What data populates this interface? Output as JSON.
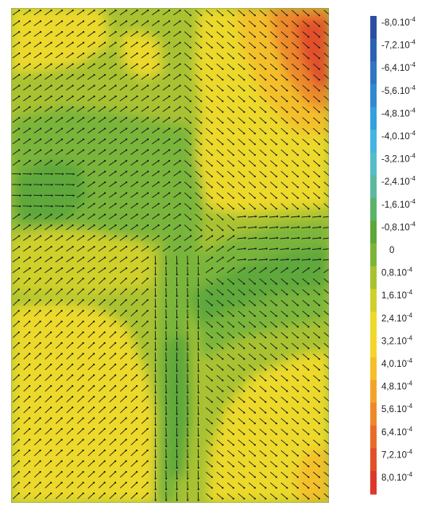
{
  "chart_data": {
    "type": "heatmap",
    "title": "",
    "xlabel": "",
    "ylabel": "",
    "overlay": "vector-field (short black arrows on a regular grid)",
    "grid": false,
    "legend_placement": "right",
    "colorbar": {
      "levels": [
        {
          "label": "-8,0.10-4",
          "value": -0.0008,
          "color": "#2b4fa0"
        },
        {
          "label": "-7,2.10-4",
          "value": -0.00072,
          "color": "#2c62b2"
        },
        {
          "label": "-6,4.10-4",
          "value": -0.00064,
          "color": "#3076c2"
        },
        {
          "label": "-5,6.10-4",
          "value": -0.00056,
          "color": "#3289cf"
        },
        {
          "label": "-4,8.10-4",
          "value": -0.00048,
          "color": "#34a0dc"
        },
        {
          "label": "-4,0.10-4",
          "value": -0.0004,
          "color": "#45b4e2"
        },
        {
          "label": "-3,2.10-4",
          "value": -0.00032,
          "color": "#55bcc9"
        },
        {
          "label": "-2,4.10-4",
          "value": -0.00024,
          "color": "#5cb9a0"
        },
        {
          "label": "-1,6.10-4",
          "value": -0.00016,
          "color": "#5bb36a"
        },
        {
          "label": "-0,8.10-4",
          "value": -8e-05,
          "color": "#5ea83a"
        },
        {
          "label": "0",
          "value": 0,
          "color": "#7ab53a"
        },
        {
          "label": "0,8.10-4",
          "value": 8e-05,
          "color": "#a8c232"
        },
        {
          "label": "1,6.10-4",
          "value": 0.00016,
          "color": "#cfd02b"
        },
        {
          "label": "2,4.10-4",
          "value": 0.00024,
          "color": "#ecd92a"
        },
        {
          "label": "3,2.10-4",
          "value": 0.00032,
          "color": "#f6d52a"
        },
        {
          "label": "4,0.10-4",
          "value": 0.0004,
          "color": "#f4bf2a"
        },
        {
          "label": "4,8.10-4",
          "value": 0.00048,
          "color": "#f1a42a"
        },
        {
          "label": "5,6.10-4",
          "value": 0.00056,
          "color": "#ed892a"
        },
        {
          "label": "6,4.10-4",
          "value": 0.00064,
          "color": "#e86c2a"
        },
        {
          "label": "7,2.10-4",
          "value": 0.00072,
          "color": "#e2502a"
        },
        {
          "label": "8,0.10-4",
          "value": 0.0008,
          "color": "#dc392a"
        }
      ]
    },
    "field_regions": [
      {
        "label": "bottom-left lobe",
        "value": 0.00032
      },
      {
        "label": "bottom-right lobe",
        "value": 0.00032
      },
      {
        "label": "top-right lobe",
        "value": 0.0008
      },
      {
        "label": "central stem",
        "value": -8e-05
      },
      {
        "label": "upper-left band",
        "value": -8e-05
      }
    ]
  }
}
